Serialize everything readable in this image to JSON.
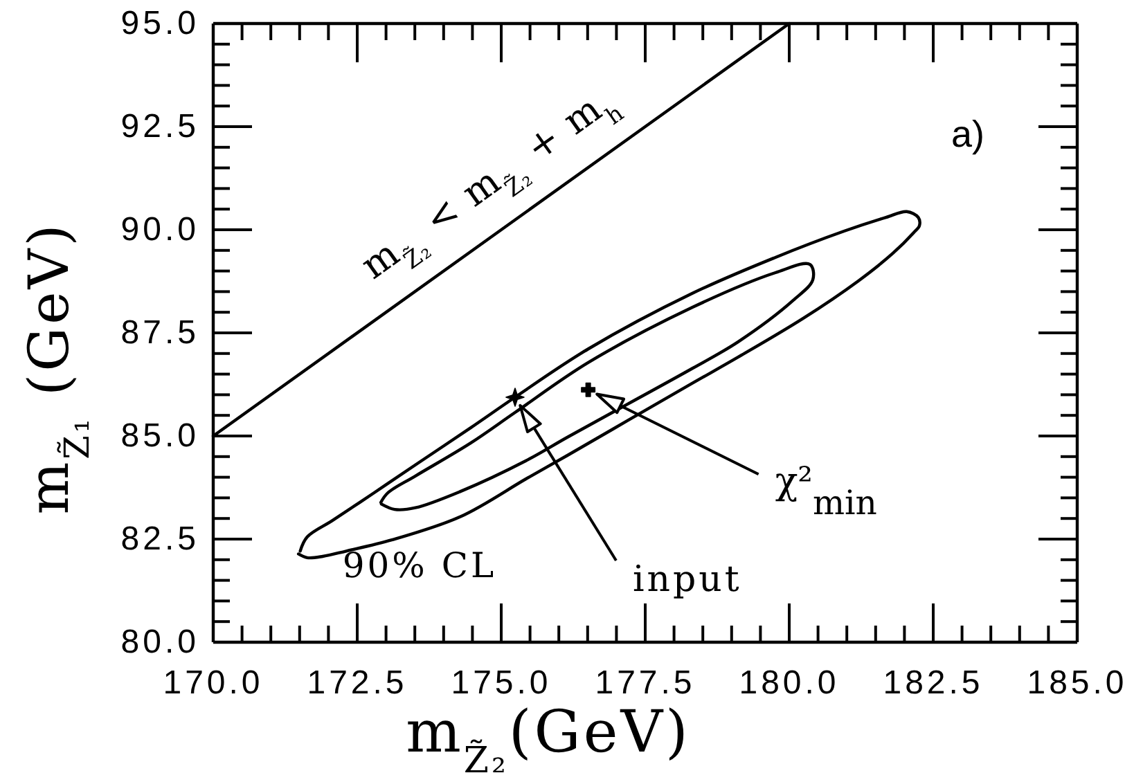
{
  "chart_data": {
    "type": "line",
    "xlabel": "m$_{Z̃₂}$(GeV)",
    "ylabel": "m$_{Z̃₁}$ (GeV)",
    "xlim": [
      170,
      185
    ],
    "ylim": [
      80,
      95
    ],
    "xticks": [
      {
        "value": 170,
        "label": "170.0"
      },
      {
        "value": 170.5,
        "label": null
      },
      {
        "value": 171,
        "label": null
      },
      {
        "value": 171.5,
        "label": null
      },
      {
        "value": 172,
        "label": null
      },
      {
        "value": 172.5,
        "label": "172.5"
      },
      {
        "value": 173,
        "label": null
      },
      {
        "value": 173.5,
        "label": null
      },
      {
        "value": 174,
        "label": null
      },
      {
        "value": 174.5,
        "label": null
      },
      {
        "value": 175,
        "label": "175.0"
      },
      {
        "value": 175.5,
        "label": null
      },
      {
        "value": 176,
        "label": null
      },
      {
        "value": 176.5,
        "label": null
      },
      {
        "value": 177,
        "label": null
      },
      {
        "value": 177.5,
        "label": "177.5"
      },
      {
        "value": 178,
        "label": null
      },
      {
        "value": 178.5,
        "label": null
      },
      {
        "value": 179,
        "label": null
      },
      {
        "value": 179.5,
        "label": null
      },
      {
        "value": 180,
        "label": "180.0"
      },
      {
        "value": 180.5,
        "label": null
      },
      {
        "value": 181,
        "label": null
      },
      {
        "value": 181.5,
        "label": null
      },
      {
        "value": 182,
        "label": null
      },
      {
        "value": 182.5,
        "label": "182.5"
      },
      {
        "value": 183,
        "label": null
      },
      {
        "value": 183.5,
        "label": null
      },
      {
        "value": 184,
        "label": null
      },
      {
        "value": 184.5,
        "label": null
      },
      {
        "value": 185,
        "label": "185.0"
      }
    ],
    "yticks": [
      {
        "value": 80,
        "label": "80.0"
      },
      {
        "value": 80.5,
        "label": null
      },
      {
        "value": 81,
        "label": null
      },
      {
        "value": 81.5,
        "label": null
      },
      {
        "value": 82,
        "label": null
      },
      {
        "value": 82.5,
        "label": "82.5"
      },
      {
        "value": 83,
        "label": null
      },
      {
        "value": 83.5,
        "label": null
      },
      {
        "value": 84,
        "label": null
      },
      {
        "value": 84.5,
        "label": null
      },
      {
        "value": 85,
        "label": "85.0"
      },
      {
        "value": 85.5,
        "label": null
      },
      {
        "value": 86,
        "label": null
      },
      {
        "value": 86.5,
        "label": null
      },
      {
        "value": 87,
        "label": null
      },
      {
        "value": 87.5,
        "label": "87.5"
      },
      {
        "value": 88,
        "label": null
      },
      {
        "value": 88.5,
        "label": null
      },
      {
        "value": 89,
        "label": null
      },
      {
        "value": 89.5,
        "label": null
      },
      {
        "value": 90,
        "label": "90.0"
      },
      {
        "value": 90.5,
        "label": null
      },
      {
        "value": 91,
        "label": null
      },
      {
        "value": 91.5,
        "label": null
      },
      {
        "value": 92,
        "label": null
      },
      {
        "value": 92.5,
        "label": "92.5"
      },
      {
        "value": 93,
        "label": null
      },
      {
        "value": 93.5,
        "label": null
      },
      {
        "value": 94,
        "label": null
      },
      {
        "value": 94.5,
        "label": null
      },
      {
        "value": 95,
        "label": "95.0"
      }
    ],
    "series": [
      {
        "color": "#000000",
        "x": [
          171.51,
          171.63,
          172.07,
          172.79,
          173.51,
          174.47,
          175.24,
          176.51,
          178.32,
          179.76,
          180.96,
          181.68,
          182.04,
          182.24,
          182.26,
          182.16,
          181.8,
          181.2,
          180.24,
          179.11,
          178.32,
          177.19,
          176.15,
          175.43,
          174.3,
          173.1,
          172.31,
          171.9,
          171.63,
          171.48
        ],
        "values": [
          82.21,
          82.55,
          82.95,
          83.62,
          84.3,
          85.2,
          85.94,
          87.11,
          88.46,
          89.33,
          89.97,
          90.3,
          90.44,
          90.3,
          90.1,
          89.93,
          89.43,
          88.76,
          87.85,
          86.91,
          86.28,
          85.37,
          84.53,
          83.96,
          83.05,
          82.48,
          82.21,
          82.08,
          82.05,
          82.14
        ]
      },
      {
        "color": "#000000",
        "x": [
          172.91,
          173.03,
          173.51,
          174.47,
          175.24,
          176.51,
          178.32,
          179.76,
          180.36,
          180.41,
          180.07,
          179.11,
          178.32,
          177.19,
          176.15,
          175.43,
          174.3,
          173.51,
          173.15,
          172.92
        ],
        "values": [
          83.39,
          83.62,
          84.03,
          84.83,
          85.57,
          86.78,
          88.12,
          88.96,
          89.16,
          88.79,
          88.29,
          87.28,
          86.64,
          85.77,
          84.97,
          84.4,
          83.66,
          83.26,
          83.22,
          83.35
        ]
      },
      {
        "color": "#000000",
        "x": [
          170,
          180
        ],
        "values": [
          85,
          95
        ]
      },
      {
        "type": "scatter",
        "marker": "star",
        "color": "#000000",
        "x": [
          175.24
        ],
        "values": [
          85.94
        ]
      },
      {
        "type": "scatter",
        "marker": "cross",
        "color": "#000000",
        "x": [
          176.51
        ],
        "values": [
          86.12
        ]
      }
    ],
    "annotations": [
      "a)",
      "m$_{Z̃₂}$ < m$_{Z̃₂}$ + m$_{h}$",
      "90% CL",
      {
        "text": "input",
        "x": 175.24,
        "y": 85.94
      },
      {
        "text": "χ²$_{min}$",
        "x": 176.51,
        "y": 86.12
      }
    ]
  }
}
